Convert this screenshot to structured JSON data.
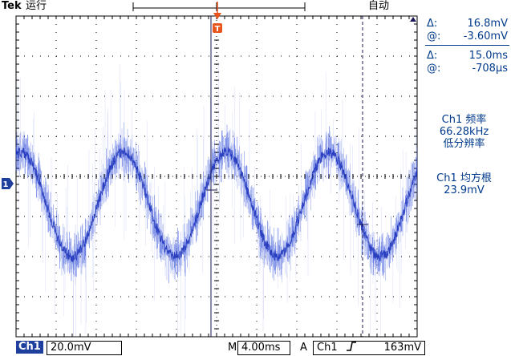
{
  "header": {
    "brand": "Tek",
    "run_state": "运行",
    "trigger_mode": "自动",
    "trigger_marker": "T"
  },
  "cursor_readout": {
    "amplitude_delta_label": "Δ:",
    "amplitude_delta": "16.8mV",
    "amplitude_at_label": "@:",
    "amplitude_at": "-3.60mV",
    "time_delta_label": "Δ:",
    "time_delta": "15.0ms",
    "time_at_label": "@:",
    "time_at": "-708µs"
  },
  "measurements": {
    "freq_title": "Ch1 频率",
    "freq_value": "66.28kHz",
    "freq_note": "低分辨率",
    "rms_title": "Ch1 均方根",
    "rms_value": "23.9mV"
  },
  "status_bar": {
    "channel_badge": "Ch1",
    "volts_per_div": "20.0mV",
    "time_prefix": "M",
    "time_per_div": "4.00ms",
    "trigger_prefix": "A",
    "trigger_source": "Ch1",
    "trigger_slope_icon": "rising-edge-icon",
    "trigger_level": "163mV"
  },
  "channel_marker": "1",
  "colors": {
    "trace": "#1f3fd6",
    "channel": "#1f3f9e",
    "trigger_marker": "#e8541c",
    "graticule": "#000000"
  }
}
